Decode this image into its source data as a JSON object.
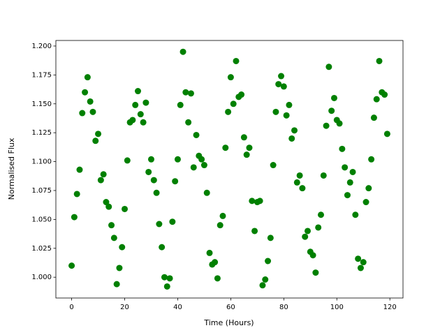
{
  "chart_data": {
    "type": "scatter",
    "x_label": "Time (Hours)",
    "y_label": "Normalised Flux",
    "color": "#008000",
    "x": [
      0,
      1,
      2,
      3,
      4,
      5,
      6,
      7,
      8,
      9,
      10,
      11,
      12,
      13,
      14,
      15,
      16,
      17,
      18,
      19,
      20,
      21,
      22,
      23,
      24,
      25,
      26,
      27,
      28,
      29,
      30,
      31,
      32,
      33,
      34,
      35,
      36,
      37,
      38,
      39,
      40,
      41,
      42,
      43,
      44,
      45,
      46,
      47,
      48,
      49,
      50,
      51,
      52,
      53,
      54,
      55,
      56,
      57,
      58,
      59,
      60,
      61,
      62,
      63,
      64,
      65,
      66,
      67,
      68,
      69,
      70,
      71,
      72,
      73,
      74,
      75,
      76,
      77,
      78,
      79,
      80,
      81,
      82,
      83,
      84,
      85,
      86,
      87,
      88,
      89,
      90,
      91,
      92,
      93,
      94,
      95,
      96,
      97,
      98,
      99,
      100,
      101,
      102,
      103,
      104,
      105,
      106,
      107,
      108,
      109,
      110,
      111,
      112,
      113,
      114,
      115,
      116,
      117,
      118,
      119
    ],
    "values": [
      1.01,
      1.052,
      1.072,
      1.093,
      1.142,
      1.16,
      1.173,
      1.152,
      1.143,
      1.118,
      1.124,
      1.084,
      1.089,
      1.065,
      1.061,
      1.045,
      1.034,
      0.994,
      1.008,
      1.026,
      1.059,
      1.101,
      1.134,
      1.136,
      1.149,
      1.161,
      1.141,
      1.134,
      1.151,
      1.091,
      1.102,
      1.084,
      1.073,
      1.046,
      1.026,
      1.0,
      0.992,
      0.999,
      1.048,
      1.083,
      1.102,
      1.149,
      1.195,
      1.16,
      1.134,
      1.159,
      1.095,
      1.123,
      1.105,
      1.102,
      1.097,
      1.073,
      1.021,
      1.011,
      1.013,
      0.999,
      1.045,
      1.053,
      1.112,
      1.143,
      1.173,
      1.15,
      1.187,
      1.156,
      1.158,
      1.121,
      1.106,
      1.112,
      1.066,
      1.04,
      1.065,
      1.066,
      0.993,
      0.998,
      1.014,
      1.034,
      1.097,
      1.143,
      1.167,
      1.174,
      1.165,
      1.14,
      1.149,
      1.12,
      1.127,
      1.082,
      1.088,
      1.077,
      1.035,
      1.04,
      1.022,
      1.019,
      1.004,
      1.043,
      1.054,
      1.088,
      1.131,
      1.182,
      1.144,
      1.155,
      1.136,
      1.133,
      1.111,
      1.095,
      1.071,
      1.082,
      1.091,
      1.054,
      1.016,
      1.008,
      1.013,
      1.065,
      1.077,
      1.102,
      1.138,
      1.154,
      1.187,
      1.16,
      1.158,
      1.124
    ],
    "xlim": [
      -5.95,
      124.95
    ],
    "xticks": [
      0,
      20,
      40,
      60,
      80,
      100,
      120
    ],
    "ylim": [
      0.982,
      1.2048
    ],
    "yticks": [
      {
        "value": 1.0,
        "label": "1.000"
      },
      {
        "value": 1.025,
        "label": "1.025"
      },
      {
        "value": 1.05,
        "label": "1.050"
      },
      {
        "value": 1.075,
        "label": "1.075"
      },
      {
        "value": 1.1,
        "label": "1.100"
      },
      {
        "value": 1.125,
        "label": "1.125"
      },
      {
        "value": 1.15,
        "label": "1.150"
      },
      {
        "value": 1.175,
        "label": "1.175"
      },
      {
        "value": 1.2,
        "label": "1.200"
      }
    ],
    "grid": false
  }
}
